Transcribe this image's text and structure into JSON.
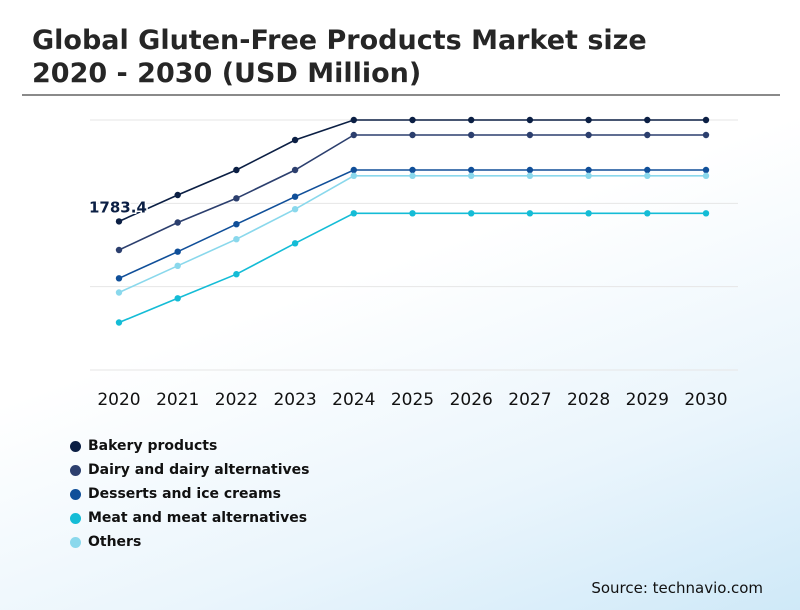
{
  "chart_data": {
    "type": "line",
    "title_lines": [
      "Global Gluten-Free Products Market size",
      "2020 - 2030 (USD Million)"
    ],
    "categories": [
      "2020",
      "2021",
      "2022",
      "2023",
      "2024",
      "2025",
      "2026",
      "2027",
      "2028",
      "2029",
      "2030"
    ],
    "xlabel": "",
    "ylabel": "",
    "ylim": [
      0,
      3000
    ],
    "grid": true,
    "legend_position": "bottom-left",
    "data_label": {
      "series": "Bakery products",
      "category": "2020",
      "text": "1783.4"
    },
    "series": [
      {
        "name": "Bakery products",
        "color": "#0b1f44",
        "values": [
          1783.4,
          2100,
          2400,
          2760,
          3000,
          3000,
          3000,
          3000,
          3000,
          3000,
          3000
        ]
      },
      {
        "name": "Dairy and dairy alternatives",
        "color": "#2c3f6e",
        "values": [
          1440,
          1770,
          2060,
          2400,
          2820,
          2820,
          2820,
          2820,
          2820,
          2820,
          2820
        ]
      },
      {
        "name": "Desserts and ice creams",
        "color": "#104f99",
        "values": [
          1100,
          1420,
          1750,
          2080,
          2400,
          2400,
          2400,
          2400,
          2400,
          2400,
          2400
        ]
      },
      {
        "name": "Meat and meat alternatives",
        "color": "#14bcd6",
        "values": [
          570,
          860,
          1150,
          1520,
          1880,
          1880,
          1880,
          1880,
          1880,
          1880,
          1880
        ]
      },
      {
        "name": "Others",
        "color": "#8ad8ec",
        "values": [
          930,
          1250,
          1570,
          1930,
          2330,
          2330,
          2330,
          2330,
          2330,
          2330,
          2330
        ]
      }
    ]
  },
  "source": "Source: technavio.com"
}
